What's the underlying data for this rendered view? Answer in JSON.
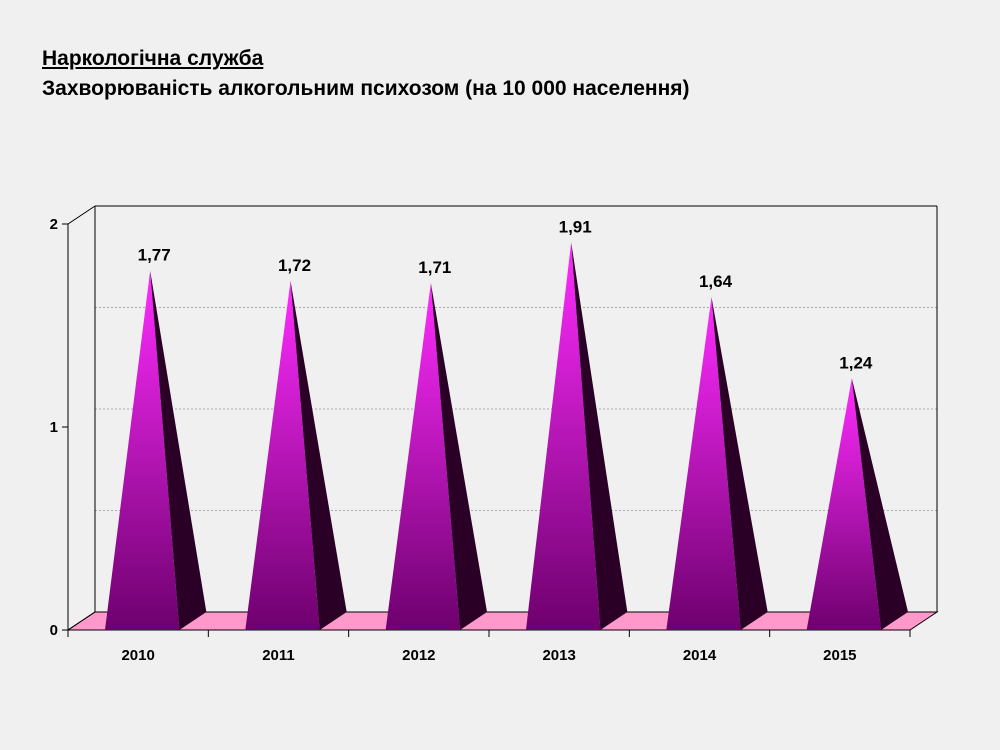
{
  "slide": {
    "title_line1": "Наркологічна служба",
    "title_line2": "Захворюваність  алкогольним психозом (на 10 000 населення)"
  },
  "chart_data": {
    "type": "bar",
    "bar_shape": "pyramid-3d",
    "categories": [
      "2010",
      "2011",
      "2012",
      "2013",
      "2014",
      "2015"
    ],
    "values": [
      1.77,
      1.72,
      1.71,
      1.91,
      1.64,
      1.24
    ],
    "value_labels": [
      "1,77",
      "1,72",
      "1,71",
      "1,91",
      "1,64",
      "1,24"
    ],
    "y_ticks": [
      "0",
      "1",
      "2"
    ],
    "ylim": [
      0,
      2
    ],
    "grid": true,
    "legend": "none",
    "colors": {
      "bar_front_top": "#ff2cff",
      "bar_front_bottom": "#6e006e",
      "bar_side": "#2a0026",
      "floor": "#ff99cc",
      "gridline": "#aaaaaa"
    }
  }
}
